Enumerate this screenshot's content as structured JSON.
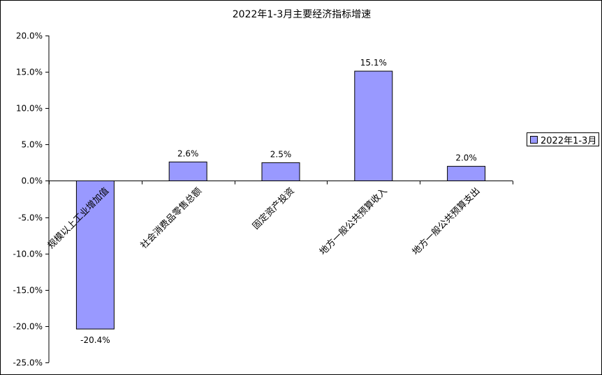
{
  "chart_data": {
    "type": "bar",
    "title": "2022年1-3月主要经济指标增速",
    "categories": [
      "规模以上工业增加值",
      "社会消费品零售总额",
      "固定资产投资",
      "地方一般公共预算收入",
      "地方一般公共预算支出"
    ],
    "series": [
      {
        "name": "2022年1-3月",
        "values": [
          -20.4,
          2.6,
          2.5,
          15.1,
          2.0
        ],
        "color": "#9999FF"
      }
    ],
    "data_labels": [
      "-20.4%",
      "2.6%",
      "2.5%",
      "15.1%",
      "2.0%"
    ],
    "ylim": [
      -25,
      20
    ],
    "y_step": 5,
    "y_tick_labels": [
      "20.0%",
      "15.0%",
      "10.0%",
      "5.0%",
      "0.0%",
      "-5.0%",
      "-10.0%",
      "-15.0%",
      "-20.0%",
      "-25.0%"
    ],
    "xlabel": "",
    "ylabel": "",
    "grid": false,
    "legend_position": "right"
  }
}
